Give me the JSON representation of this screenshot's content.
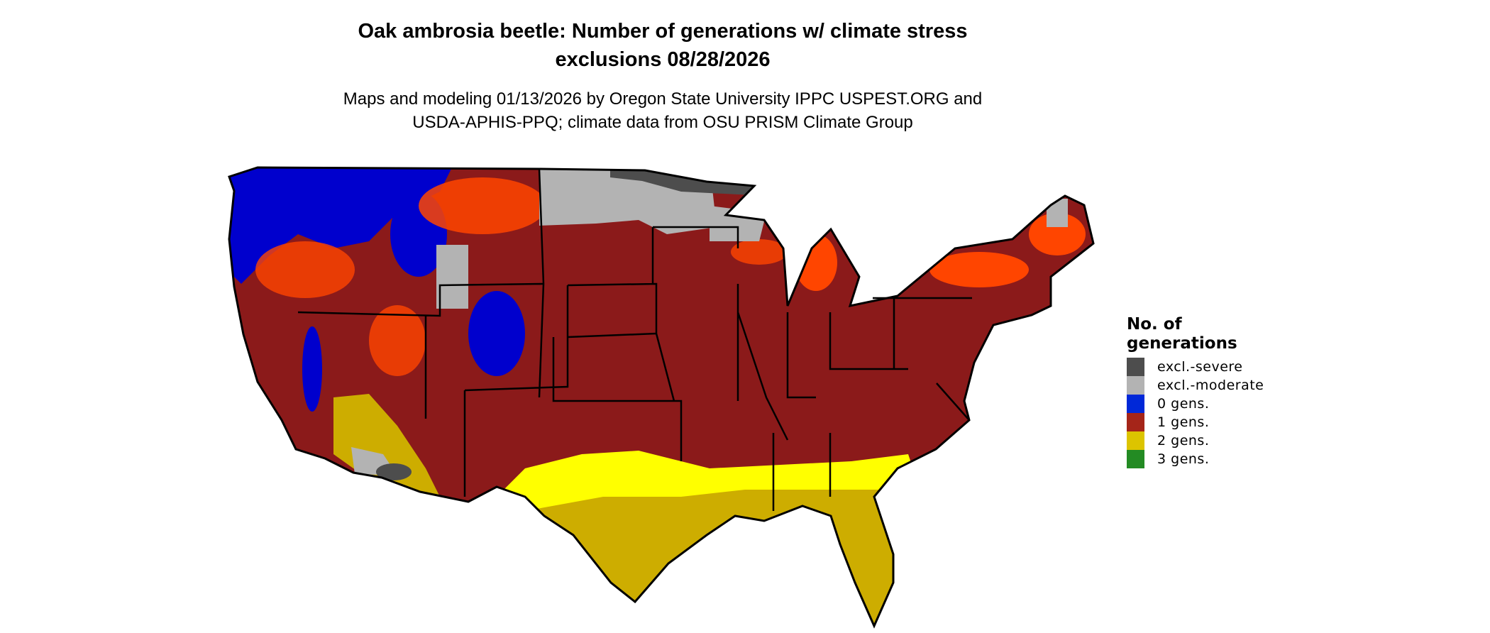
{
  "title": {
    "line1": "Oak ambrosia beetle: Number of generations w/ climate stress",
    "line2": "exclusions 08/28/2026"
  },
  "subtitle": {
    "line1": "Maps and modeling 01/13/2026 by Oregon State University IPPC USPEST.ORG and",
    "line2": "USDA-APHIS-PPQ; climate data from OSU PRISM Climate Group"
  },
  "legend": {
    "title_line1": "No. of",
    "title_line2": "generations",
    "items": [
      {
        "label": "excl.-severe",
        "color": "#4d4d4d"
      },
      {
        "label": "excl.-moderate",
        "color": "#b3b3b3"
      },
      {
        "label": "0 gens.",
        "color": "#0028d8"
      },
      {
        "label": "1 gens.",
        "color": "#a52519"
      },
      {
        "label": "2 gens.",
        "color": "#dcc400"
      },
      {
        "label": "3 gens.",
        "color": "#238b23"
      }
    ]
  },
  "map_colors": {
    "one_gen_dark": "#8b1a1a",
    "orange": "#ff4500",
    "blue": "#0000cd",
    "gray": "#b3b3b3",
    "dark_gray": "#4d4d4d",
    "yellow": "#ffff00",
    "gold": "#cdad00"
  }
}
